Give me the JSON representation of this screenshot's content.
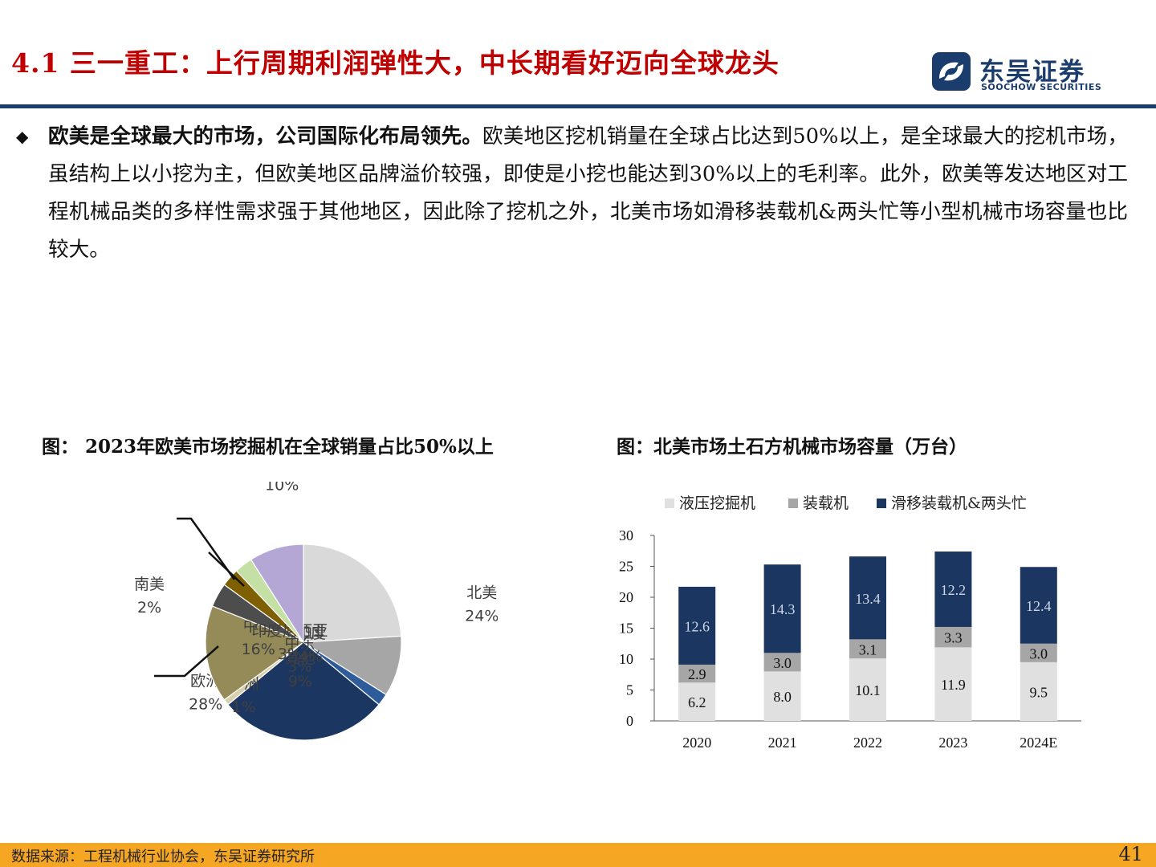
{
  "header": {
    "title": "4.1  三一重工：上行周期利润弹性大，中长期看好迈向全球龙头",
    "logo_cn": "东吴证券",
    "logo_en": "SOOCHOW SECURITIES",
    "brand_color": "#1b3d6e",
    "title_color": "#c00000"
  },
  "body": {
    "bullet": "◆",
    "lead": "欧美是全球最大的市场，公司国际化布局领先。",
    "text": "欧美地区挖机销量在全球占比达到50%以上，是全球最大的挖机市场，虽结构上以小挖为主，但欧美地区品牌溢价较强，即使是小挖也能达到30%以上的毛利率。此外，欧美等发达地区对工程机械品类的多样性需求强于其他地区，因此除了挖机之外，北美市场如滑移装载机&两头忙等小型机械市场容量也比较大。"
  },
  "figures": {
    "left_title": "图：  2023年欧美市场挖掘机在全球销量占比50%以上",
    "right_title": "图：北美市场土石方机械市场容量（万台）"
  },
  "chart_data": [
    {
      "type": "pie",
      "title": "2023年欧美市场挖掘机在全球销量占比50%以上",
      "slices": [
        {
          "name": "北美",
          "value": 24,
          "label": "24%",
          "color": "#d9d9d9"
        },
        {
          "name": "日本",
          "value": 10,
          "label": "10%",
          "color": "#a6a6a6"
        },
        {
          "name": "南美",
          "value": 2,
          "label": "2%",
          "color": "#2e5b9a"
        },
        {
          "name": "欧洲",
          "value": 28,
          "label": "28%",
          "color": "#1b3660"
        },
        {
          "name": "非洲",
          "value": 1,
          "label": "1%",
          "color": "#d8cfae"
        },
        {
          "name": "中国",
          "value": 16,
          "label": "16%",
          "color": "#958b58"
        },
        {
          "name": "印度",
          "value": 4,
          "label": "4%",
          "color": "#4d4d4d"
        },
        {
          "name": "印度尼西亚",
          "value": 3,
          "label": "3%",
          "color": "#7f6000"
        },
        {
          "name": "中东",
          "value": 3,
          "label": "3%",
          "color": "#c5e0a5"
        },
        {
          "name": "其他",
          "value": 9,
          "label": "9%",
          "color": "#b4a7d6"
        }
      ]
    },
    {
      "type": "bar",
      "stacked": true,
      "title": "北美市场土石方机械市场容量（万台）",
      "categories": [
        "2020",
        "2021",
        "2022",
        "2023",
        "2024E"
      ],
      "series": [
        {
          "name": "液压挖掘机",
          "values": [
            6.2,
            8.0,
            10.1,
            11.9,
            9.5
          ],
          "color": "#e0e0e0"
        },
        {
          "name": "装载机",
          "values": [
            2.9,
            3.0,
            3.1,
            3.3,
            3.0
          ],
          "color": "#a6a6a6"
        },
        {
          "name": "滑移装载机&两头忙",
          "values": [
            12.6,
            14.3,
            13.4,
            12.2,
            12.4
          ],
          "color": "#1b3660"
        }
      ],
      "value_labels": [
        [
          "6.2",
          "8.0",
          "10.1",
          "11.9",
          "9.5"
        ],
        [
          "2.9",
          "3.0",
          "3.1",
          "3.3",
          "3.0"
        ],
        [
          "12.6",
          "14.3",
          "13.4",
          "12.2",
          "12.4"
        ]
      ],
      "ylim": [
        0,
        30
      ],
      "yticks": [
        "0",
        "5",
        "10",
        "15",
        "20",
        "25",
        "30"
      ],
      "legend_position": "top"
    }
  ],
  "footer": {
    "source": "数据来源：工程机械行业协会，东吴证券研究所",
    "page": "41"
  }
}
